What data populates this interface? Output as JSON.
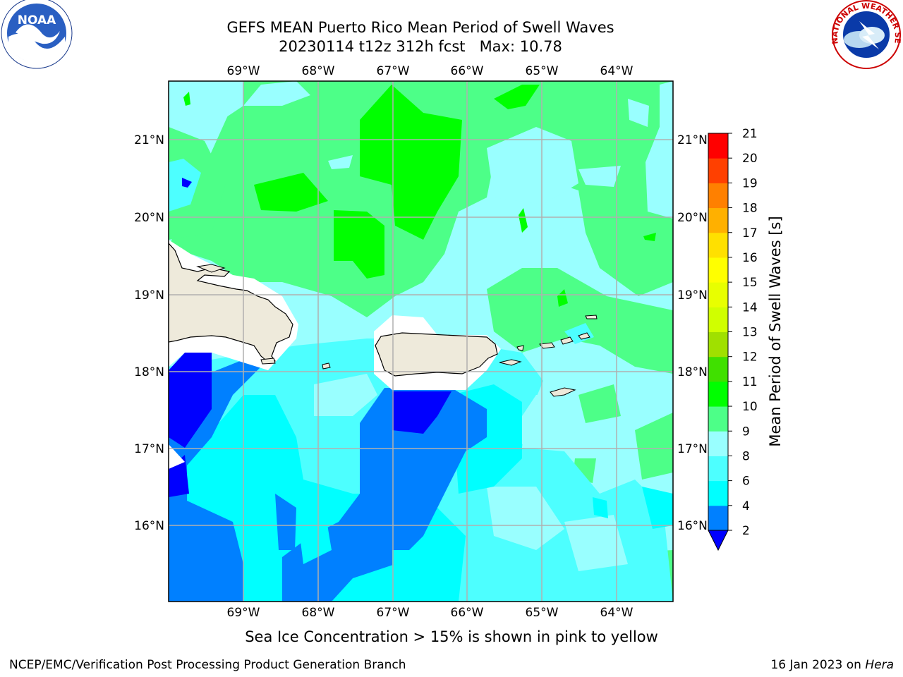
{
  "title": {
    "line1": "GEFS MEAN Puerto Rico Mean Period of Swell Waves",
    "line2": "20230114 t12z 312h fcst   Max: 10.78"
  },
  "map": {
    "longitude_labels": [
      "69°W",
      "68°W",
      "67°W",
      "66°W",
      "65°W",
      "64°W"
    ],
    "latitude_labels": [
      "16°N",
      "17°N",
      "18°N",
      "19°N",
      "20°N",
      "21°N"
    ],
    "land_color": "#eeeadb",
    "grid_color": "#b0b0b0"
  },
  "colorbar": {
    "label": "Mean Period of Swell Waves [s]",
    "ticks": [
      "2",
      "4",
      "6",
      "8",
      "9",
      "10",
      "11",
      "12",
      "13",
      "14",
      "15",
      "16",
      "17",
      "18",
      "19",
      "20",
      "21"
    ],
    "colors": [
      "#0000ff",
      "#0080ff",
      "#00ffff",
      "#4dffff",
      "#99ffff",
      "#4dff88",
      "#00ff00",
      "#40e000",
      "#a0e000",
      "#d0ff00",
      "#e8ff00",
      "#ffff00",
      "#ffe000",
      "#ffb000",
      "#ff8000",
      "#ff4000",
      "#ff0000"
    ],
    "under_color": "#0000ff"
  },
  "note": "Sea Ice Concentration > 15% is shown in pink to yellow",
  "footer": {
    "left": "NCEP/EMC/Verification Post Processing Product Generation Branch",
    "right_date": "16 Jan 2023 on ",
    "right_host": "Hera"
  },
  "logos": {
    "noaa_text": "NOAA",
    "nws_text": "NATIONAL WEATHER SERVICE"
  }
}
